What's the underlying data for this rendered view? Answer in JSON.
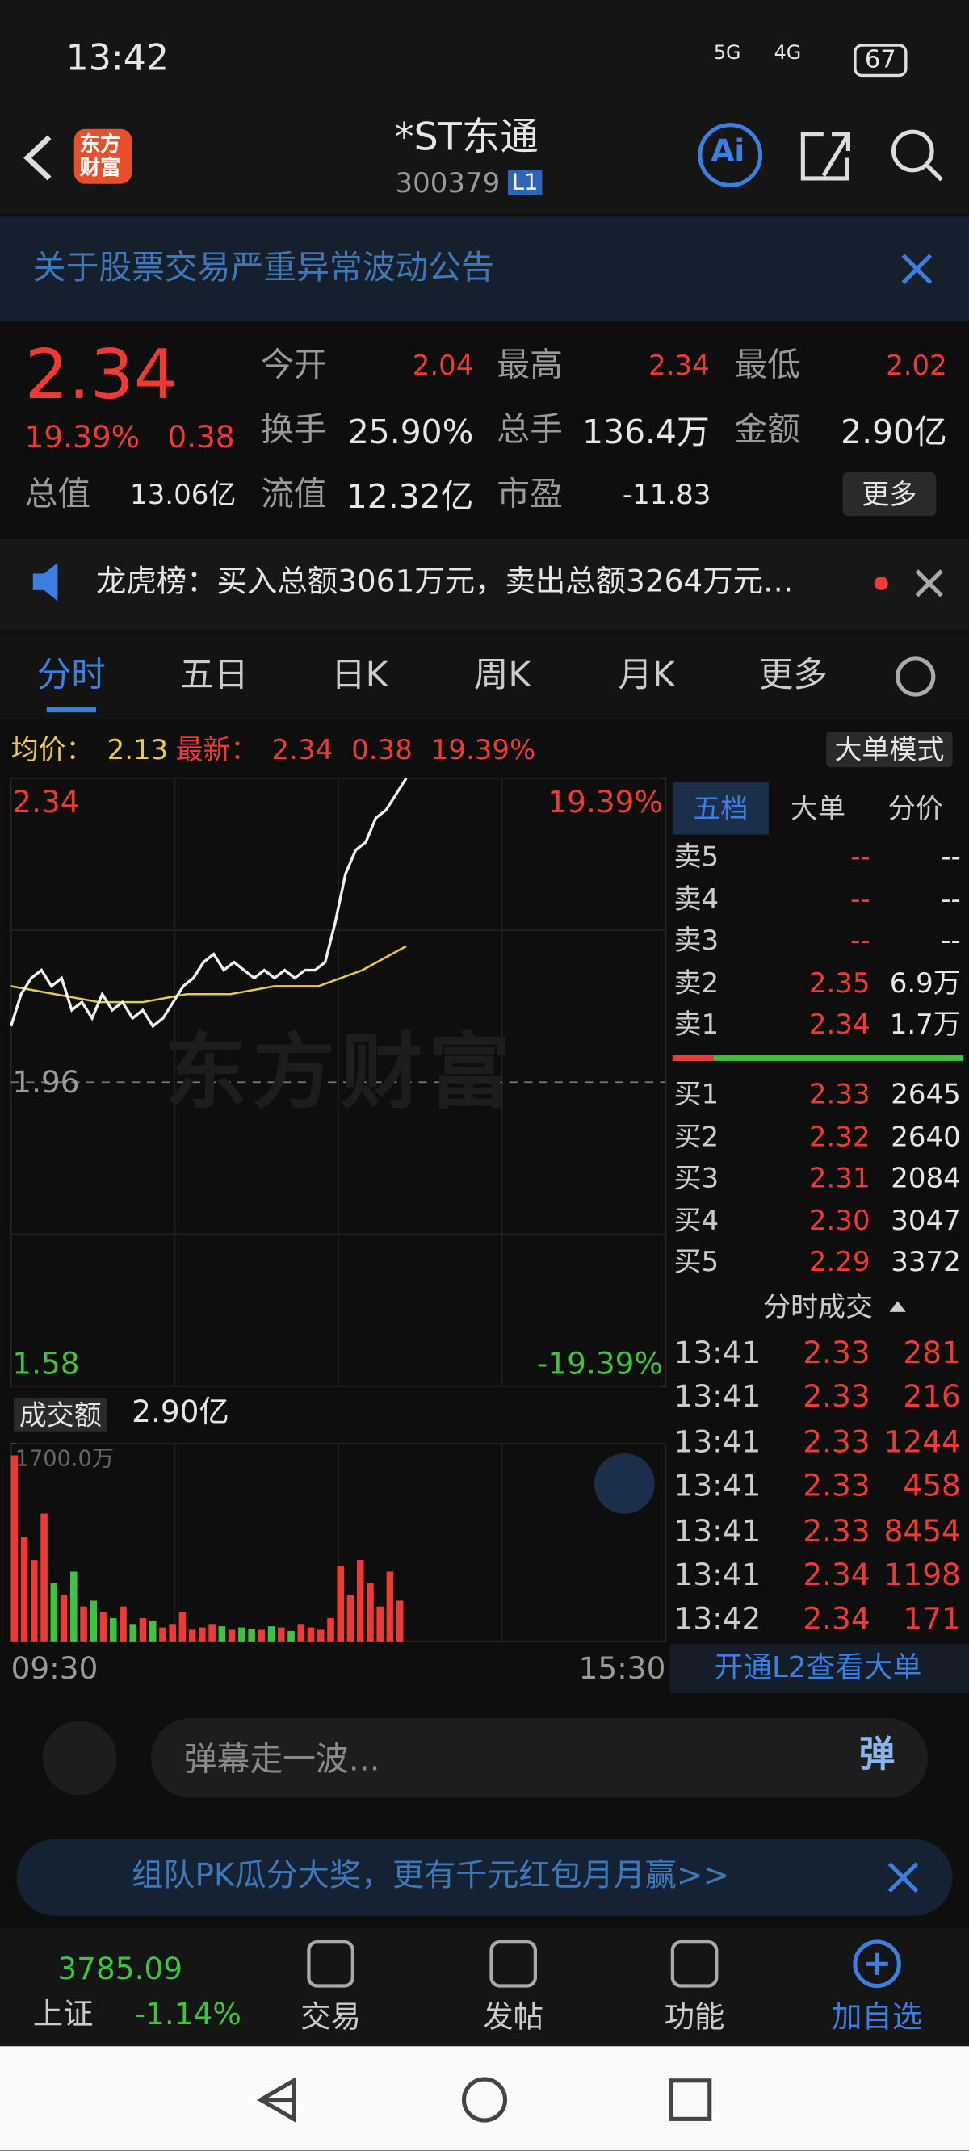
{
  "status_bar": {
    "time": "13:42",
    "net1": "5G",
    "net2": "4G",
    "battery": "67"
  },
  "header": {
    "logo": "东方财富",
    "title": "*ST东通",
    "code": "300379",
    "level": "L1",
    "ai": "Ai"
  },
  "banner": "关于股票交易严重异常波动公告",
  "quote": {
    "price": "2.34",
    "change_pct": "19.39%",
    "change": "0.38",
    "more": "更多",
    "stats": [
      {
        "label": "今开",
        "value": "2.04"
      },
      {
        "label": "最高",
        "value": "2.34"
      },
      {
        "label": "最低",
        "value": "2.02"
      },
      {
        "label": "换手",
        "value": "25.90%"
      },
      {
        "label": "总手",
        "value": "136.4万"
      },
      {
        "label": "金额",
        "value": "2.90亿"
      },
      {
        "label": "总值",
        "value": "13.06亿"
      },
      {
        "label": "流值",
        "value": "12.32亿"
      },
      {
        "label": "市盈",
        "value": "-11.83"
      }
    ]
  },
  "notice": "龙虎榜：买入总额3061万元，卖出总额3264万元…",
  "tabs": [
    "分时",
    "五日",
    "日K",
    "周K",
    "月K",
    "更多"
  ],
  "info": {
    "avg_label": "均价：",
    "avg": "2.13",
    "latest_label": "最新：",
    "latest": "2.34",
    "change": "0.38",
    "pct": "19.39%",
    "mode": "大单模式"
  },
  "intraday": {
    "watermark": "东方财富",
    "ylim": [
      1.58,
      2.34
    ],
    "yticks": [
      2.34,
      1.96,
      1.58
    ],
    "y2ticks": [
      {
        "value": 19.39,
        "label": "19.39%"
      },
      {
        "value": -19.39,
        "label": "-19.39%"
      }
    ],
    "price": [
      2.03,
      2.07,
      2.09,
      2.1,
      2.08,
      2.09,
      2.05,
      2.06,
      2.04,
      2.07,
      2.05,
      2.06,
      2.04,
      2.05,
      2.03,
      2.04,
      2.06,
      2.08,
      2.09,
      2.11,
      2.12,
      2.1,
      2.11,
      2.1,
      2.09,
      2.1,
      2.09,
      2.1,
      2.09,
      2.1,
      2.1,
      2.11,
      2.16,
      2.22,
      2.25,
      2.26,
      2.29,
      2.3,
      2.32,
      2.34
    ],
    "avg": [
      2.08,
      2.07,
      2.06,
      2.06,
      2.07,
      2.07,
      2.08,
      2.08,
      2.1,
      2.13
    ],
    "volume_label": "成交额",
    "volume_total": "2.90亿",
    "volume_ylim": [
      0,
      1700
    ],
    "volume_ticks": [
      {
        "value": 1700,
        "label": "1700.0万"
      }
    ],
    "volume": [
      1600,
      900,
      700,
      1100,
      500,
      400,
      600,
      300,
      350,
      250,
      200,
      300,
      150,
      200,
      180,
      120,
      150,
      250,
      100,
      120,
      150,
      130,
      100,
      120,
      110,
      100,
      130,
      120,
      90,
      150,
      120,
      100,
      200,
      650,
      400,
      700,
      500,
      300,
      600,
      350
    ],
    "times": [
      "09:30",
      "15:30"
    ]
  },
  "order_book": {
    "tabs": [
      "五档",
      "大单",
      "分价"
    ],
    "asks": [
      {
        "label": "卖5",
        "price": "--",
        "vol": "--"
      },
      {
        "label": "卖4",
        "price": "--",
        "vol": "--"
      },
      {
        "label": "卖3",
        "price": "--",
        "vol": "--"
      },
      {
        "label": "卖2",
        "price": "2.35",
        "vol": "6.9万"
      },
      {
        "label": "卖1",
        "price": "2.34",
        "vol": "1.7万"
      }
    ],
    "bids": [
      {
        "label": "买1",
        "price": "2.33",
        "vol": "2645"
      },
      {
        "label": "买2",
        "price": "2.32",
        "vol": "2640"
      },
      {
        "label": "买3",
        "price": "2.31",
        "vol": "2084"
      },
      {
        "label": "买4",
        "price": "2.30",
        "vol": "3047"
      },
      {
        "label": "买5",
        "price": "2.29",
        "vol": "3372"
      }
    ],
    "trades_title": "分时成交",
    "trades": [
      {
        "time": "13:41",
        "price": "2.33",
        "vol": "281"
      },
      {
        "time": "13:41",
        "price": "2.33",
        "vol": "216"
      },
      {
        "time": "13:41",
        "price": "2.33",
        "vol": "1244"
      },
      {
        "time": "13:41",
        "price": "2.33",
        "vol": "458"
      },
      {
        "time": "13:41",
        "price": "2.33",
        "vol": "8454"
      },
      {
        "time": "13:41",
        "price": "2.34",
        "vol": "1198"
      },
      {
        "time": "13:42",
        "price": "2.34",
        "vol": "171"
      }
    ],
    "l2": "开通L2查看大单"
  },
  "comment": {
    "placeholder": "弹幕走一波...",
    "button": "弹"
  },
  "promo": "组队PK瓜分大奖，更有千元红包月月赢>>",
  "nav": {
    "index_value": "3785.09",
    "index_name": "上证",
    "index_pct": "-1.14%",
    "items": [
      "交易",
      "发帖",
      "功能",
      "加自选"
    ]
  }
}
